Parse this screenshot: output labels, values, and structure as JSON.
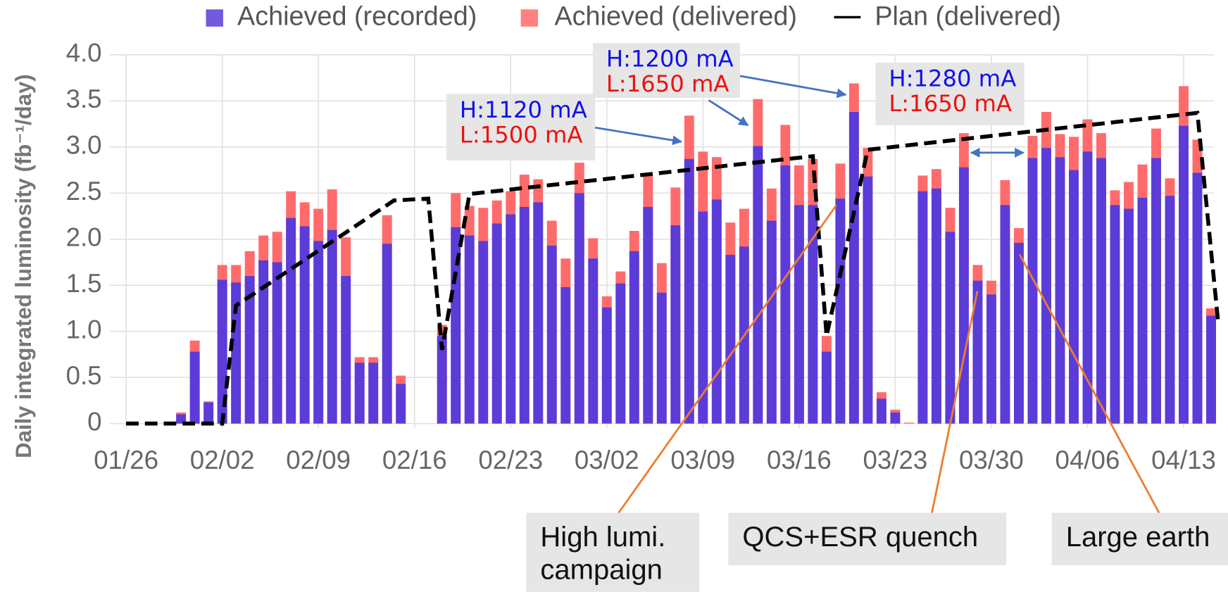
{
  "chart_data": {
    "type": "bar",
    "y_label": "Daily integrated luminosity (fb⁻¹/day)",
    "x": [
      4,
      5,
      6,
      7,
      8,
      9,
      10,
      11,
      12,
      13,
      14,
      15,
      16,
      17,
      18,
      19,
      20,
      23,
      24,
      25,
      26,
      27,
      28,
      29,
      30,
      31,
      32,
      33,
      34,
      35,
      36,
      37,
      38,
      39,
      40,
      41,
      42,
      43,
      44,
      45,
      46,
      47,
      48,
      49,
      50,
      51,
      52,
      53,
      54,
      55,
      56,
      57,
      58,
      59,
      60,
      61,
      62,
      63,
      64,
      65,
      66,
      67,
      68,
      69,
      70,
      71,
      72,
      73,
      74,
      75,
      76,
      77,
      78,
      79
    ],
    "series": [
      {
        "name": "Achieved (recorded)",
        "color": "#5b3cd8",
        "values": [
          0.1,
          0.78,
          0.23,
          1.56,
          1.53,
          1.6,
          1.77,
          1.75,
          2.23,
          2.14,
          1.98,
          2.1,
          1.6,
          0.66,
          0.66,
          1.95,
          0.43,
          0.95,
          2.13,
          2.04,
          1.98,
          2.17,
          2.27,
          2.35,
          2.4,
          1.93,
          1.48,
          2.5,
          1.79,
          1.26,
          1.52,
          1.87,
          2.35,
          1.42,
          2.15,
          2.87,
          2.3,
          2.43,
          1.83,
          1.92,
          3.01,
          2.2,
          2.8,
          2.37,
          2.37,
          0.78,
          2.44,
          3.38,
          2.68,
          0.27,
          0.12,
          0,
          2.52,
          2.55,
          2.08,
          2.78,
          1.55,
          1.4,
          2.37,
          1.96,
          2.88,
          2.99,
          2.89,
          2.75,
          2.95,
          2.88,
          2.37,
          2.33,
          2.45,
          2.88,
          2.47,
          3.23,
          2.72,
          1.17
        ]
      },
      {
        "name": "Achieved (delivered)",
        "color": "#ff6b6b",
        "values": [
          0.12,
          0.9,
          0.24,
          1.72,
          1.72,
          1.87,
          2.04,
          2.08,
          2.52,
          2.4,
          2.33,
          2.54,
          2.02,
          0.72,
          0.72,
          2.26,
          0.52,
          1.07,
          2.5,
          2.36,
          2.34,
          2.42,
          2.52,
          2.7,
          2.65,
          2.2,
          1.79,
          2.83,
          2.01,
          1.38,
          1.65,
          2.09,
          2.7,
          1.74,
          2.56,
          3.34,
          2.95,
          2.89,
          2.18,
          2.33,
          3.52,
          2.55,
          3.24,
          2.8,
          2.87,
          0.95,
          2.82,
          3.69,
          2.99,
          0.34,
          0.15,
          0.01,
          2.69,
          2.76,
          2.34,
          3.15,
          1.72,
          1.55,
          2.64,
          2.12,
          3.12,
          3.38,
          3.14,
          3.11,
          3.3,
          3.15,
          2.53,
          2.62,
          2.81,
          3.2,
          2.66,
          3.66,
          3.08,
          1.25
        ]
      },
      {
        "name": "Plan (delivered)",
        "type": "line",
        "color": "#000000",
        "x": [
          0,
          7,
          8,
          19.5,
          22,
          23,
          25,
          50,
          51,
          54,
          78,
          79.5
        ],
        "values": [
          0,
          0,
          1.28,
          2.42,
          2.44,
          0.8,
          2.49,
          2.9,
          0.95,
          2.97,
          3.37,
          1.12
        ]
      }
    ],
    "xlim": [
      -1.2,
      79.2
    ],
    "xticks": [
      {
        "value": 0,
        "label": "01/26"
      },
      {
        "value": 7,
        "label": "02/02"
      },
      {
        "value": 14,
        "label": "02/09"
      },
      {
        "value": 21,
        "label": "02/16"
      },
      {
        "value": 28,
        "label": "02/23"
      },
      {
        "value": 35,
        "label": "03/02"
      },
      {
        "value": 42,
        "label": "03/09"
      },
      {
        "value": 49,
        "label": "03/16"
      },
      {
        "value": 56,
        "label": "03/23"
      },
      {
        "value": 63,
        "label": "03/30"
      },
      {
        "value": 70,
        "label": "04/06"
      },
      {
        "value": 77,
        "label": "04/13"
      }
    ],
    "ylim": [
      0,
      4
    ],
    "yticks": [
      0,
      0.5,
      {
        "value": 1,
        "label": "1.0"
      },
      1.5,
      {
        "value": 2,
        "label": "2.0"
      },
      2.5,
      {
        "value": 3,
        "label": "3.0"
      },
      3.5,
      {
        "value": 4,
        "label": "4.0"
      }
    ],
    "grid": true,
    "current_labels": [
      {
        "high": "H:1120 mA",
        "low": "L:1500 mA"
      },
      {
        "high": "H:1200 mA",
        "low": "L:1650 mA"
      },
      {
        "high": "H:1280 mA",
        "low": "L:1650 mA"
      }
    ],
    "event_labels": [
      [
        "High lumi.",
        "campaign"
      ],
      [
        "QCS+ESR quench"
      ],
      [
        "Large earth"
      ]
    ]
  }
}
